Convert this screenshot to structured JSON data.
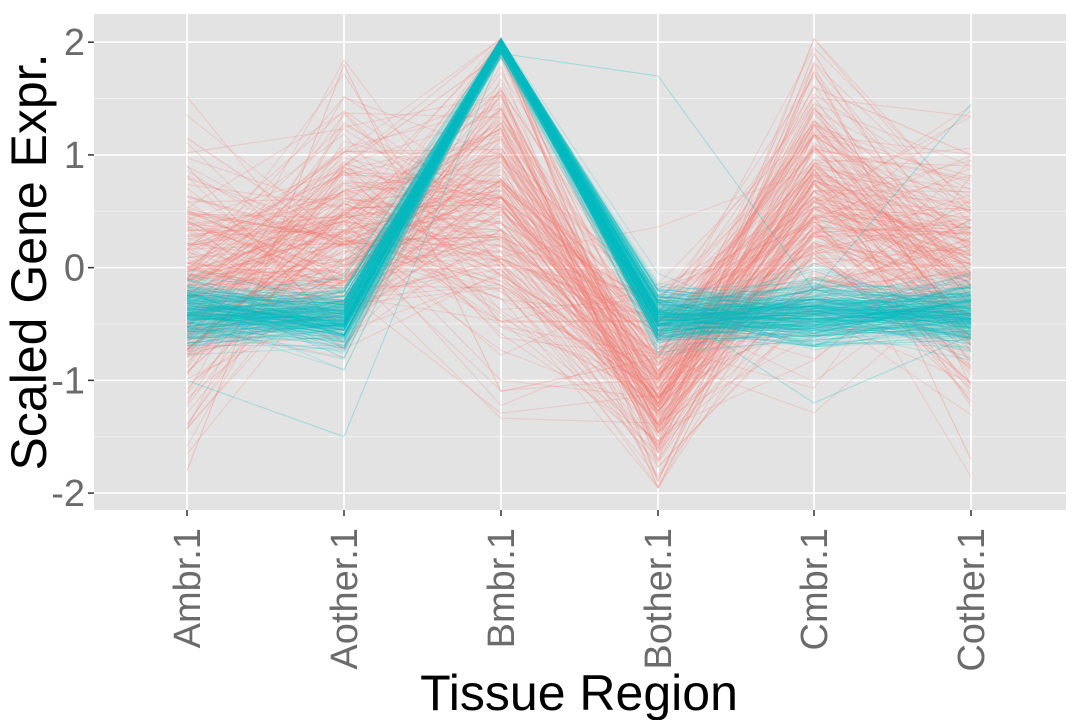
{
  "chart_data": {
    "type": "line",
    "subtype": "parallel-coordinates",
    "title": "",
    "xlabel": "Tissue Region",
    "ylabel": "Scaled Gene Expr.",
    "categories": [
      "Ambr.1",
      "Aother.1",
      "Bmbr.1",
      "Bother.1",
      "Cmbr.1",
      "Cother.1"
    ],
    "ylim": [
      -2.15,
      2.25
    ],
    "yticks": [
      2,
      1,
      0,
      -1,
      -2
    ],
    "ytick_labels": [
      "2",
      "1",
      "0",
      "-1",
      "-2"
    ],
    "grid": true,
    "legend": "none",
    "series": [
      {
        "color": "#F8766D",
        "count_estimate": 220,
        "mean_profile": [
          -0.1,
          0.3,
          0.6,
          -1.0,
          0.6,
          -0.05
        ],
        "spread": [
          0.55,
          0.55,
          0.75,
          0.45,
          0.65,
          0.55
        ],
        "example_lines": [
          [
            1.15,
            0.2,
            0.9,
            -1.6,
            1.9,
            -0.3
          ],
          [
            -1.8,
            1.8,
            -1.1,
            -0.8,
            1.6,
            1.0
          ],
          [
            0.9,
            -0.6,
            1.6,
            -1.9,
            1.2,
            -1.7
          ],
          [
            -1.2,
            0.9,
            1.9,
            -1.4,
            -0.2,
            0.6
          ]
        ]
      },
      {
        "color": "#00BFC4",
        "count_estimate": 260,
        "mean_profile": [
          -0.4,
          -0.45,
          2.0,
          -0.45,
          -0.4,
          -0.4
        ],
        "spread": [
          0.15,
          0.15,
          0.06,
          0.12,
          0.15,
          0.15
        ],
        "example_lines": [
          [
            -0.4,
            -0.5,
            2.0,
            -0.5,
            -0.4,
            -0.45
          ],
          [
            -1.0,
            -1.5,
            1.9,
            1.7,
            -0.2,
            1.45
          ],
          [
            -0.2,
            -0.8,
            2.03,
            -0.3,
            -1.2,
            -0.6
          ]
        ]
      }
    ]
  }
}
